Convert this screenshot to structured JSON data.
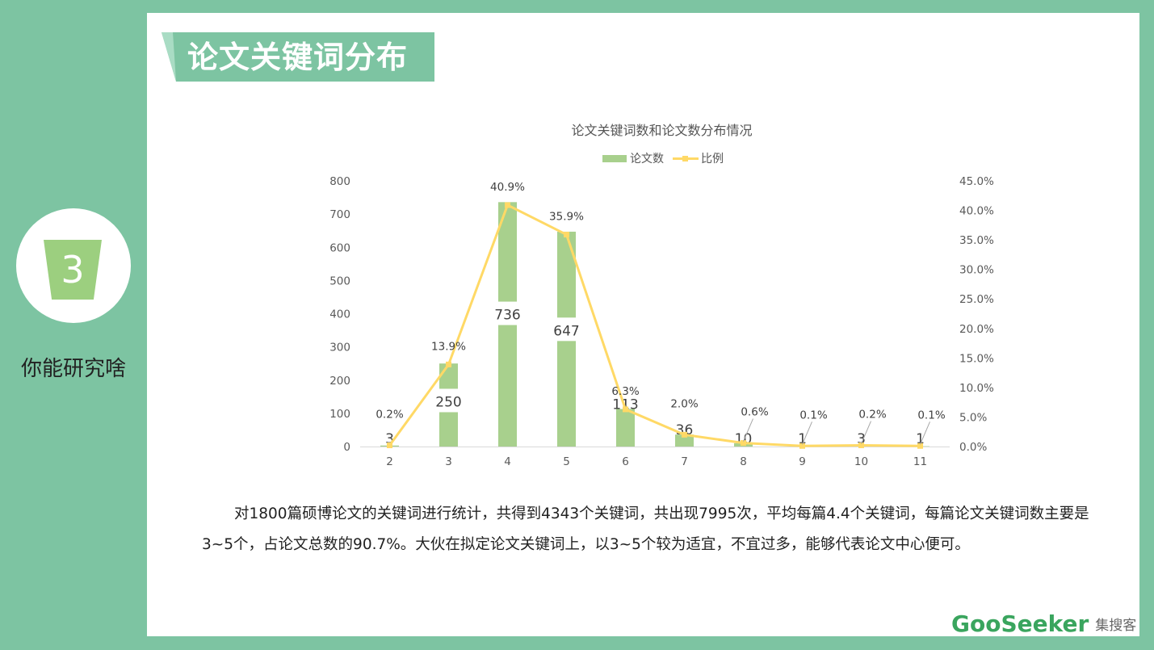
{
  "slide": {
    "title": "论文关键词分布",
    "section_number": "3",
    "section_label": "你能研究啥",
    "paragraph": "对1800篇硕博论文的关键词进行统计，共得到4343个关键词，共出现7995次，平均每篇4.4个关键词，每篇论文关键词数主要是3~5个，占论文总数的90.7%。大伙在拟定论文关键词上，以3~5个较为适宜，不宜过多，能够代表论文中心便可。",
    "logo_text": "GooSeeker",
    "logo_sub": "集搜客"
  },
  "colors": {
    "background": "#7dc4a2",
    "bar": "#a8d08d",
    "line": "#ffd966",
    "badge": "#9ccf7f"
  },
  "chart_data": {
    "type": "bar",
    "title": "论文关键词数和论文数分布情况",
    "legend": [
      "论文数",
      "比例"
    ],
    "legend_position": "top",
    "categories": [
      "2",
      "3",
      "4",
      "5",
      "6",
      "7",
      "8",
      "9",
      "10",
      "11"
    ],
    "series": [
      {
        "name": "论文数",
        "type": "bar",
        "axis": "left",
        "values": [
          3,
          250,
          736,
          647,
          113,
          36,
          10,
          1,
          3,
          1
        ]
      },
      {
        "name": "比例",
        "type": "line",
        "axis": "right",
        "values": [
          0.2,
          13.9,
          40.9,
          35.9,
          6.3,
          2.0,
          0.6,
          0.1,
          0.2,
          0.1
        ],
        "labels": [
          "0.2%",
          "13.9%",
          "40.9%",
          "35.9%",
          "6.3%",
          "2.0%",
          "0.6%",
          "0.1%",
          "0.2%",
          "0.1%"
        ]
      }
    ],
    "y_left": {
      "min": 0,
      "max": 800,
      "ticks": [
        "0",
        "100",
        "200",
        "300",
        "400",
        "500",
        "600",
        "700",
        "800"
      ]
    },
    "y_right": {
      "min": 0,
      "max": 45,
      "ticks": [
        "0.0%",
        "5.0%",
        "10.0%",
        "15.0%",
        "20.0%",
        "25.0%",
        "30.0%",
        "35.0%",
        "40.0%",
        "45.0%"
      ]
    },
    "grid": false
  }
}
